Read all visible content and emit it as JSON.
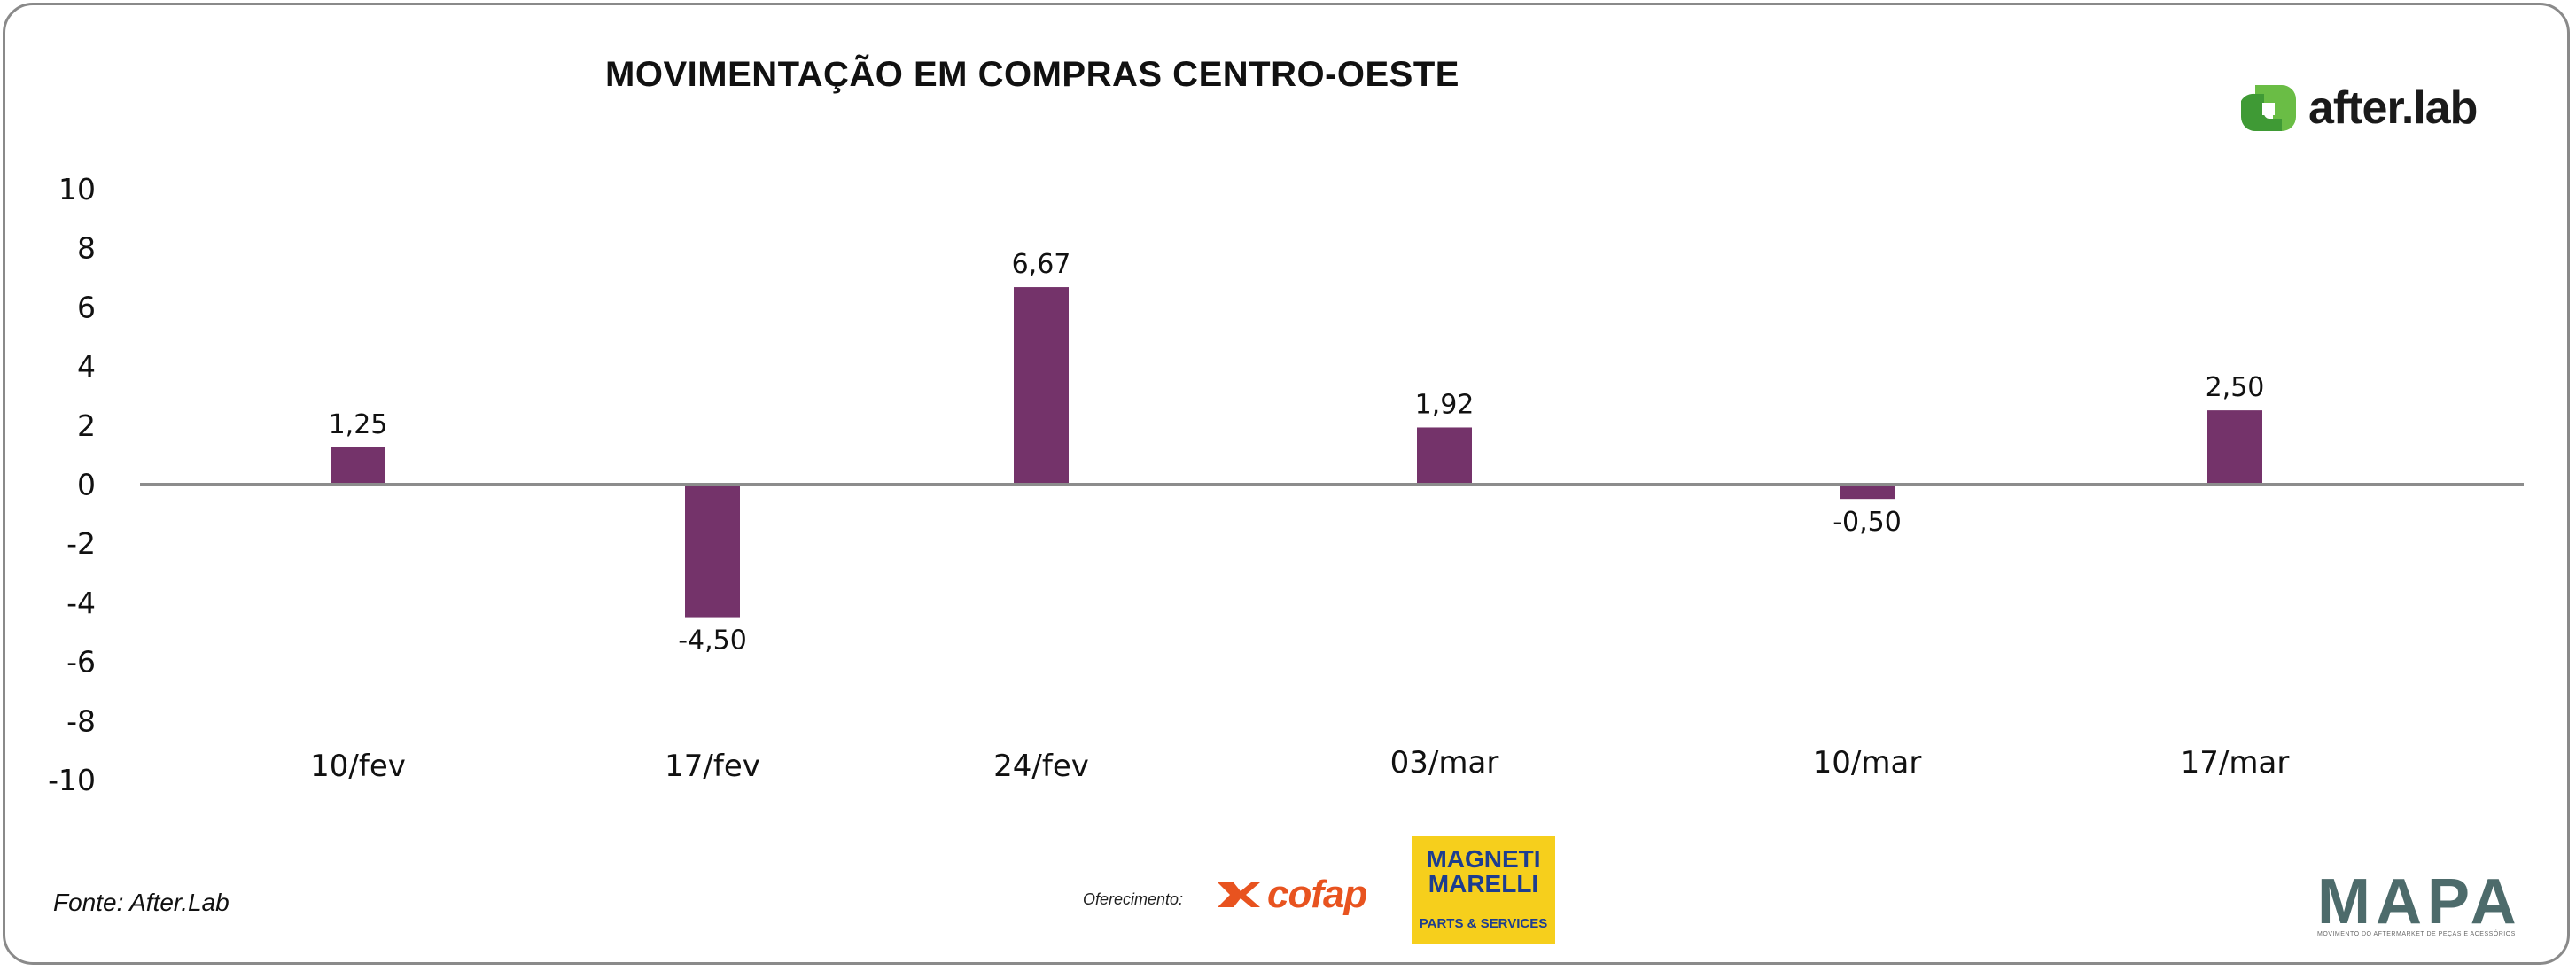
{
  "chart_data": {
    "type": "bar",
    "title": "MOVIMENTAÇÃO EM COMPRAS CENTRO-OESTE",
    "categories": [
      "10/fev",
      "17/fev",
      "24/fev",
      "03/mar",
      "10/mar",
      "17/mar"
    ],
    "values": [
      1.25,
      -4.5,
      6.67,
      1.92,
      -0.5,
      2.5
    ],
    "data_labels": [
      "1,25",
      "-4,50",
      "6,67",
      "1,92",
      "-0,50",
      "2,50"
    ],
    "ylim": [
      -10,
      10
    ],
    "yticks": [
      10,
      8,
      6,
      4,
      2,
      0,
      -2,
      -4,
      -6,
      -8,
      -10
    ],
    "xlabel": "",
    "ylabel": "",
    "grid": false,
    "bar_color": "#74336a",
    "axis_color": "#8c8c8c"
  },
  "source": "Fonte: After.Lab",
  "branding": {
    "afterlab": "after.lab",
    "afterlab_color": "#6abd45",
    "offer_label": "Oferecimento:",
    "cofap": "cofap",
    "cofap_color": "#e8531f",
    "magneti_marelli": "MAGNETI MARELLI",
    "magneti_sub": "PARTS & SERVICES",
    "magneti_bg": "#f6cf1c",
    "mapa": "MAPA",
    "mapa_sub": "MOVIMENTO DO AFTERMARKET DE PEÇAS E ACESSÓRIOS"
  }
}
